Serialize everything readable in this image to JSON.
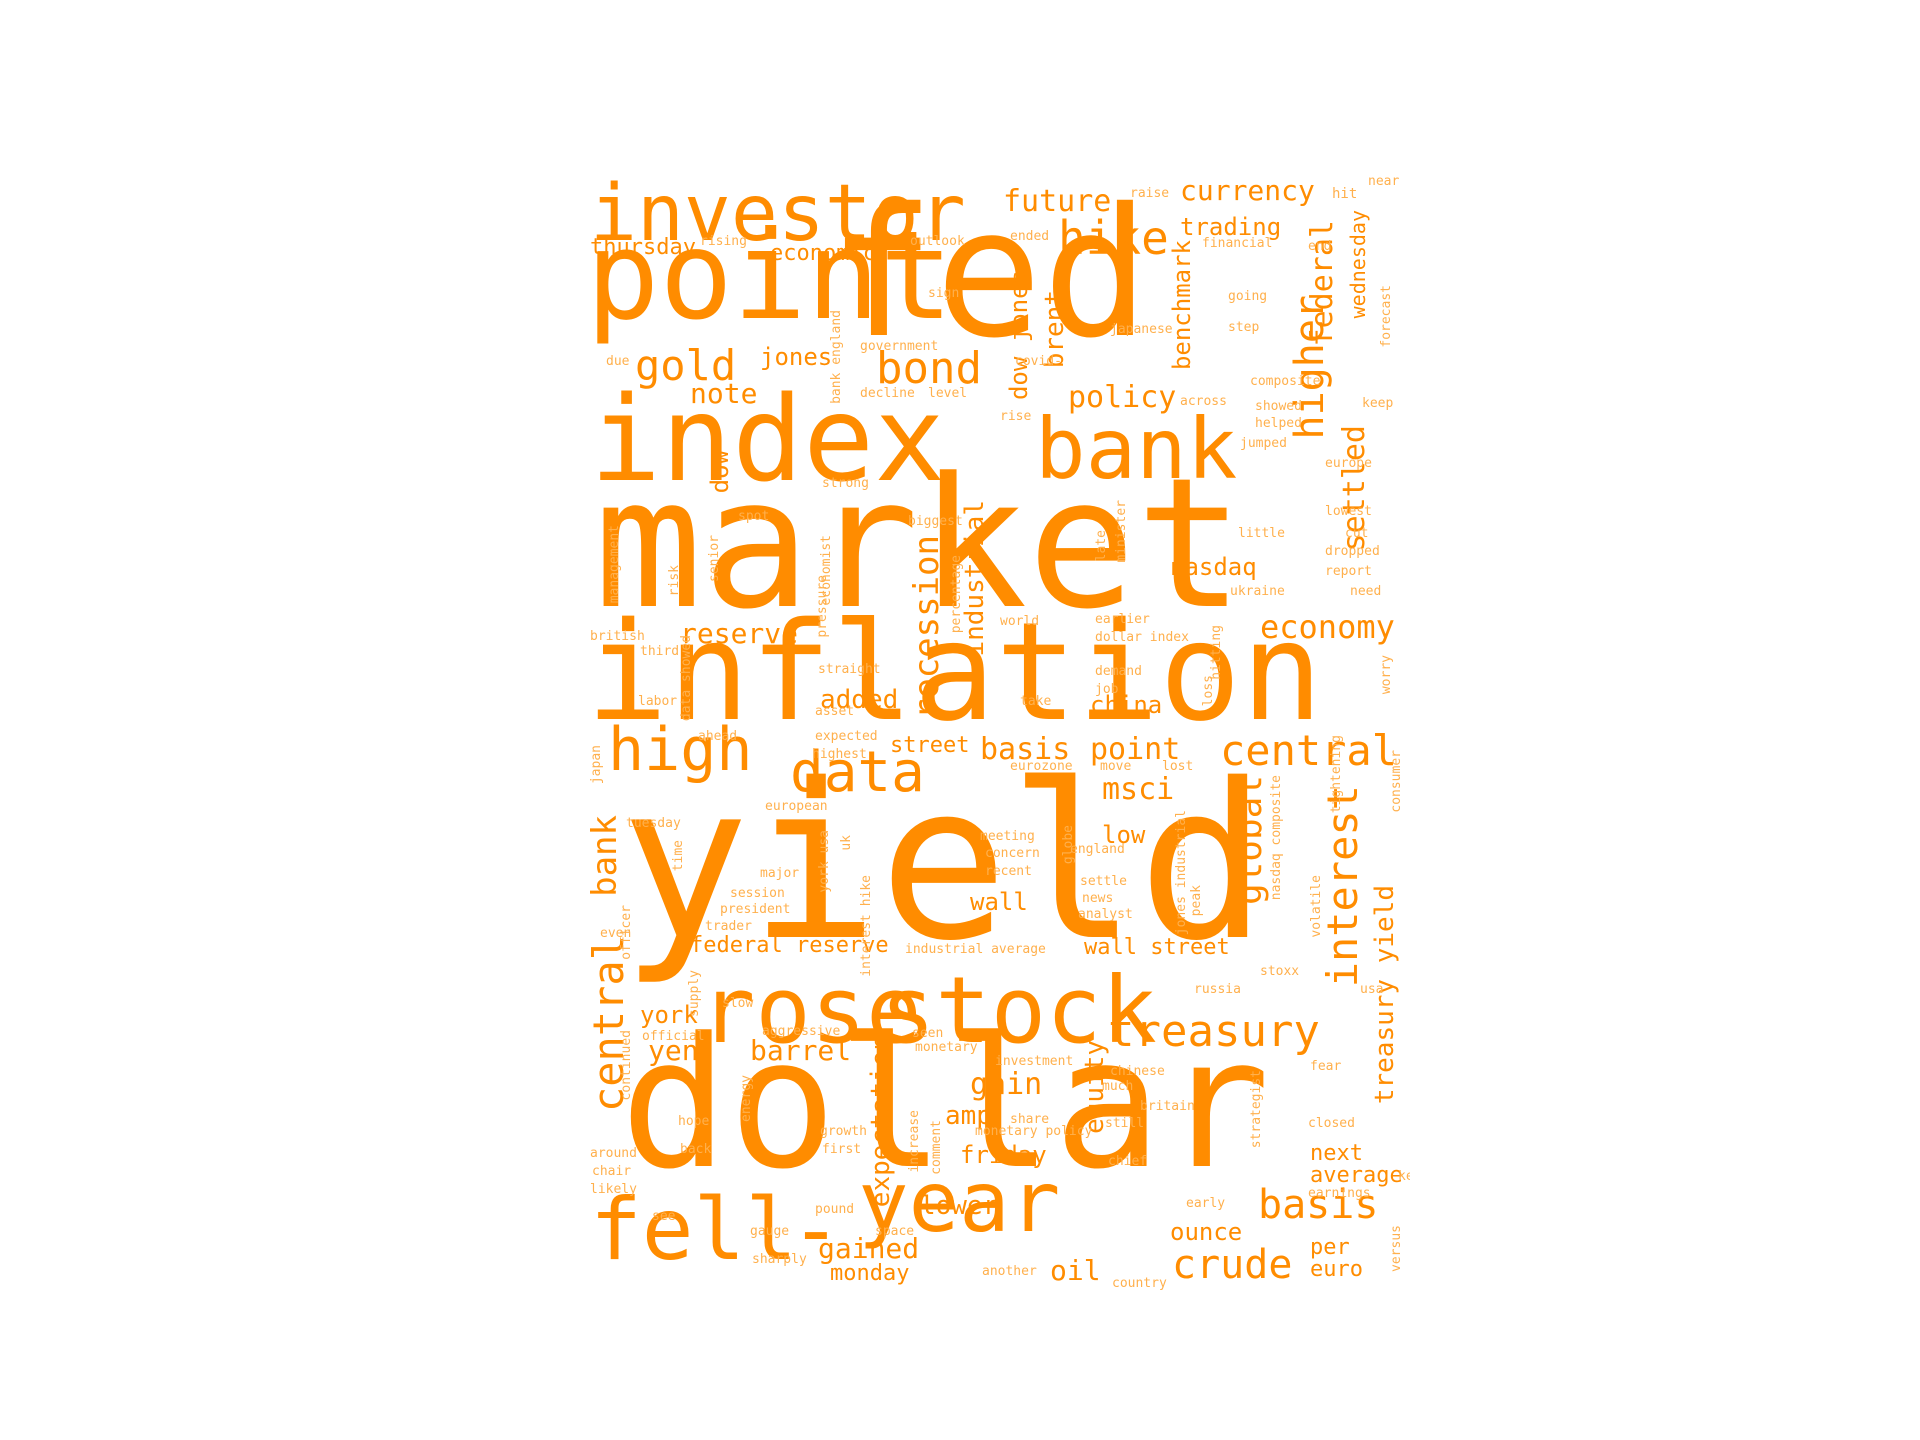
{
  "cloud": {
    "color": "#ff8c00",
    "large": [
      "investor",
      "point",
      "fed",
      "index",
      "bank",
      "market",
      "inflation",
      "yield",
      "rose",
      "stock",
      "dollar",
      "fell",
      "year"
    ],
    "medium": [
      "future",
      "currency",
      "hike",
      "trading",
      "gold",
      "jones",
      "bond",
      "note",
      "policy",
      "higher",
      "federal",
      "benchmark",
      "brent",
      "dow jones",
      "wednesday",
      "settled",
      "recession",
      "industrial",
      "dow",
      "nasdaq",
      "economy",
      "reserve",
      "added",
      "china",
      "high",
      "data",
      "central",
      "basis",
      "point",
      "street",
      "msci",
      "global",
      "interest",
      "low",
      "bank",
      "central",
      "wall",
      "federal reserve",
      "wall street",
      "treasury yield",
      "york",
      "yen",
      "barrel",
      "treasury",
      "gain",
      "amp",
      "equity",
      "expectation",
      "next",
      "average",
      "friday",
      "lower",
      "basis",
      "crude",
      "ounce",
      "per",
      "euro",
      "gained",
      "monday",
      "oil",
      "thursday",
      "economic"
    ],
    "small": [
      "near",
      "raise",
      "hit",
      "ended",
      "outlook",
      "financial",
      "end",
      "rising",
      "sign",
      "going",
      "step",
      "forecast",
      "due",
      "government",
      "japanese",
      "covid-",
      "bank england",
      "decline",
      "level",
      "composite",
      "keep",
      "across",
      "rise",
      "showed",
      "helped",
      "jumped",
      "europe",
      "strong",
      "lowest",
      "spot",
      "biggest",
      "percentage",
      "economist",
      "minister",
      "late",
      "little",
      "cut",
      "dropped",
      "report",
      "management",
      "senior",
      "risk",
      "ukraine",
      "need",
      "british",
      "third",
      "world",
      "earlier",
      "dollar index",
      "straight",
      "demand",
      "hitting",
      "labor",
      "take",
      "job",
      "loss",
      "worry",
      "asset",
      "ahead",
      "expected",
      "highest",
      "eurozone",
      "move",
      "lost",
      "japan",
      "european",
      "globe",
      "tuesday",
      "meeting",
      "concern",
      "england",
      "time",
      "major",
      "york usa",
      "uk",
      "recent",
      "settle",
      "news",
      "session",
      "president",
      "interest hike",
      "analyst",
      "peak",
      "trader",
      "even",
      "officer",
      "industrial average",
      "stoxx",
      "volatile",
      "russia",
      "usa",
      "slow",
      "supply",
      "official",
      "aggressive",
      "seen",
      "monetary",
      "continued",
      "investment",
      "fear",
      "chinese",
      "much",
      "britain",
      "hope",
      "share",
      "still",
      "strategist",
      "closed",
      "around",
      "back",
      "growth",
      "first",
      "chief",
      "chair",
      "likely",
      "comment",
      "increase",
      "monetary policy",
      "energy",
      "key",
      "earnings",
      "see",
      "pound",
      "gauge",
      "space",
      "early",
      "sharply",
      "another",
      "country",
      "versus",
      "consumer",
      "tightening",
      "nasdaq composite",
      "jones industrial",
      "pressure",
      "data showed"
    ]
  }
}
